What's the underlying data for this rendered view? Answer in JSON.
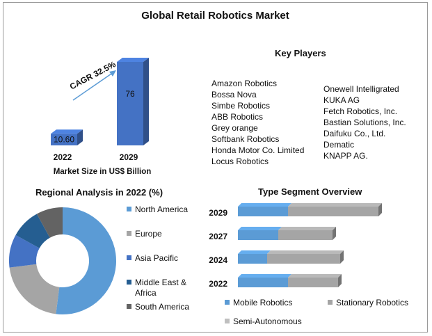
{
  "title": "Global Retail Robotics Market",
  "chart_data": [
    {
      "type": "bar",
      "name": "market-size",
      "categories": [
        "2022",
        "2029"
      ],
      "values": [
        10.6,
        76
      ],
      "value_labels": [
        "10.60",
        "76"
      ],
      "xlabel": "Market Size in US$ Billion",
      "annotation": "CAGR 32.5%",
      "color": "#4472c4"
    },
    {
      "type": "pie",
      "title": "Regional Analysis in 2022 (%)",
      "donut": true,
      "labels": [
        "North America",
        "Europe",
        "Asia Pacific",
        "Middle East & Africa",
        "South America"
      ],
      "values": [
        52,
        21,
        10,
        9,
        8
      ],
      "colors": [
        "#5b9bd5",
        "#a5a5a5",
        "#4472c4",
        "#255e91",
        "#636363"
      ],
      "legend": "right"
    },
    {
      "type": "bar",
      "orientation": "horizontal",
      "stacked": true,
      "title": "Type Segment Overview",
      "categories": [
        "2029",
        "2027",
        "2024",
        "2022"
      ],
      "series": [
        {
          "name": "Mobile Robotics",
          "values": [
            72,
            58,
            42,
            72
          ],
          "color": "#5b9bd5"
        },
        {
          "name": "Stationary Robotics",
          "values": [
            130,
            78,
            105,
            72
          ],
          "color": "#a5a5a5"
        },
        {
          "name": "Semi-Autonomous",
          "values": [
            0,
            0,
            0,
            0
          ],
          "color": "#bfbfbf"
        }
      ],
      "legend": "bottom"
    }
  ],
  "key_players": {
    "title": "Key Players",
    "left": [
      "Amazon Robotics",
      "Bossa Nova",
      "Simbe Robotics",
      "ABB Robotics",
      "Grey orange",
      "Softbank Robotics",
      "Honda Motor Co. Limited",
      "Locus Robotics"
    ],
    "right": [
      "Onewell Intelligrated",
      "KUKA AG",
      "Fetch Robotics, Inc.",
      "Bastian Solutions, Inc.",
      "Daifuku Co., Ltd.",
      "Dematic",
      "KNAPP AG."
    ]
  }
}
